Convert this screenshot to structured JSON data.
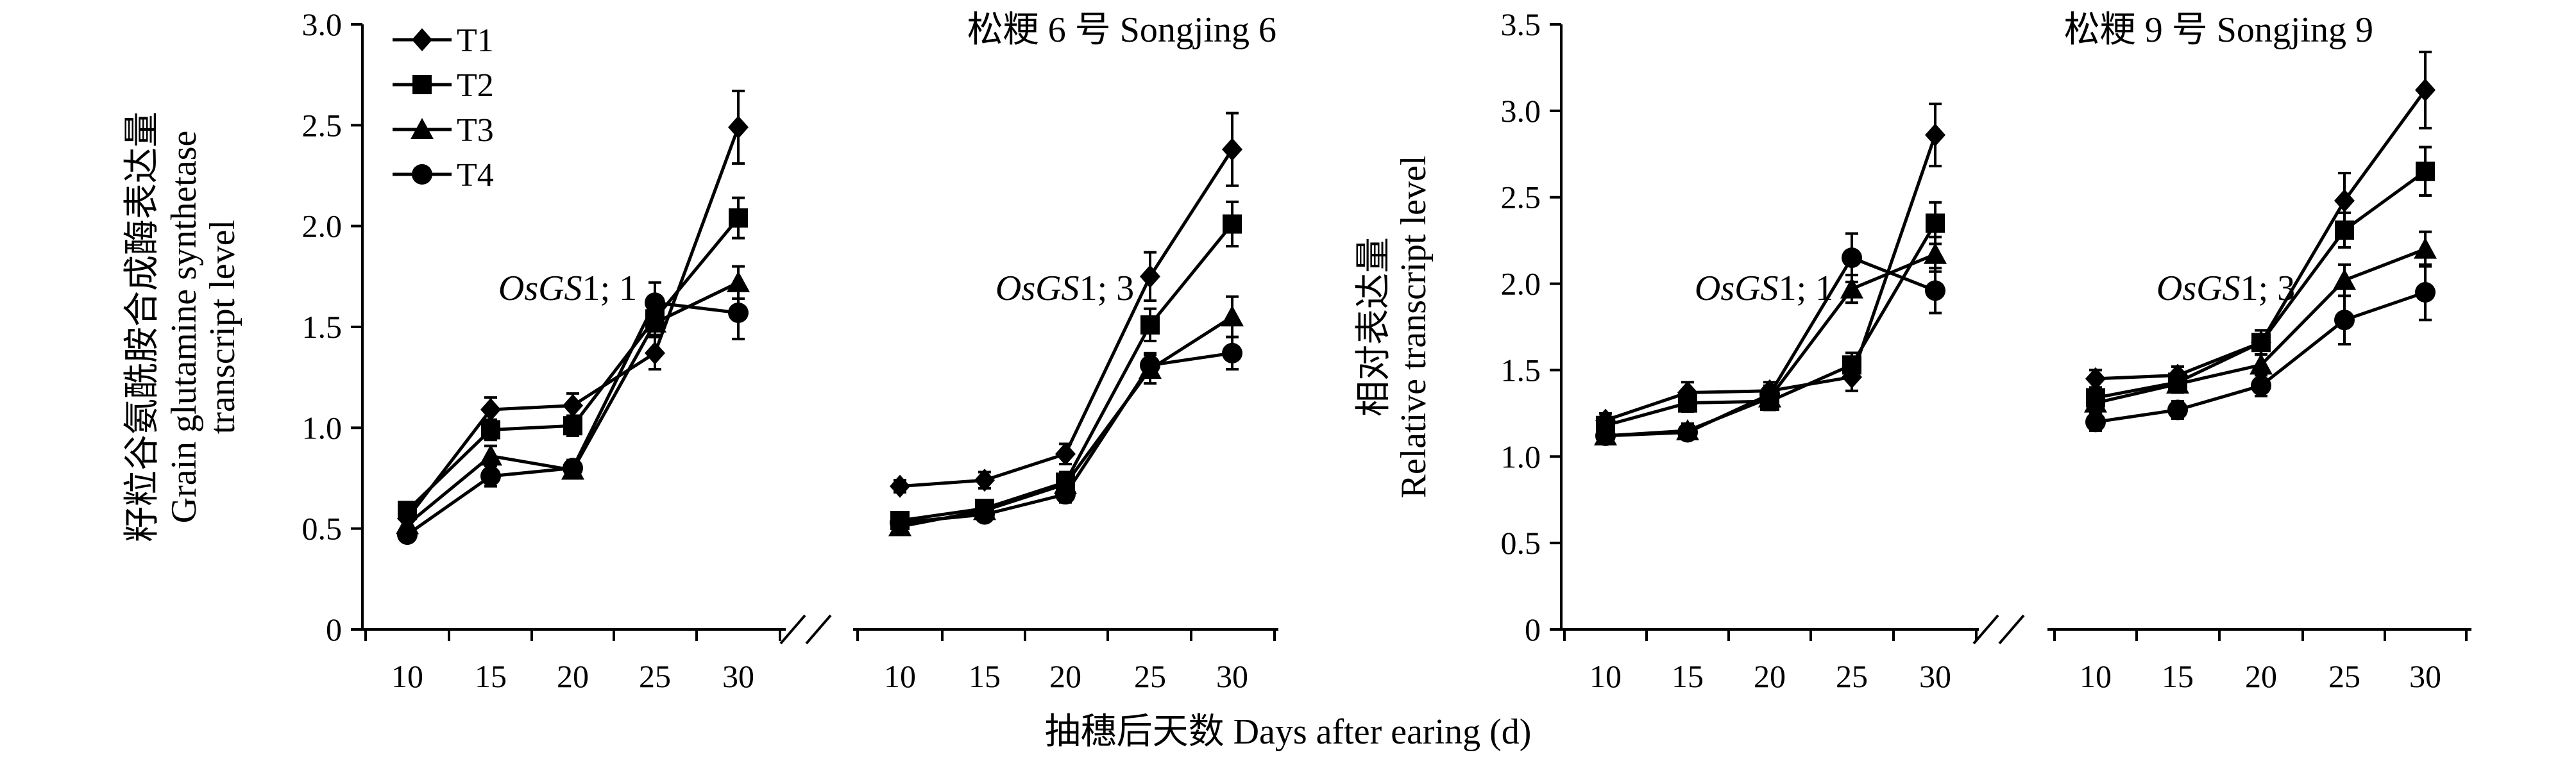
{
  "chart_data": [
    {
      "type": "line",
      "title": "松粳 6 号 Songjing 6",
      "ylabel_lines": [
        "籽粒谷氨酰胺合成酶表达量",
        "Grain glutamine synthetase",
        "transcript level"
      ],
      "ylim": [
        0,
        3.0
      ],
      "yticks": [
        "0",
        "0.5",
        "1.0",
        "1.5",
        "2.0",
        "2.5",
        "3.0"
      ],
      "legend": [
        "T1",
        "T2",
        "T3",
        "T4"
      ],
      "markers": [
        "diamond",
        "square",
        "triangle",
        "circle"
      ],
      "groups": [
        {
          "gene_italic": "OsGS",
          "gene_rest": "1; 1",
          "categories": [
            "10",
            "15",
            "20",
            "25",
            "30"
          ],
          "series": [
            {
              "name": "T1",
              "values": [
                0.55,
                1.09,
                1.11,
                1.37,
                2.49
              ],
              "errors": [
                0.04,
                0.06,
                0.06,
                0.08,
                0.18
              ]
            },
            {
              "name": "T2",
              "values": [
                0.59,
                0.99,
                1.01,
                1.54,
                2.04
              ],
              "errors": [
                0.03,
                0.05,
                0.05,
                0.08,
                0.1
              ]
            },
            {
              "name": "T3",
              "values": [
                0.52,
                0.86,
                0.79,
                1.52,
                1.72
              ],
              "errors": [
                0.03,
                0.05,
                0.04,
                0.07,
                0.08
              ]
            },
            {
              "name": "T4",
              "values": [
                0.47,
                0.76,
                0.8,
                1.62,
                1.57
              ],
              "errors": [
                0.03,
                0.05,
                0.04,
                0.1,
                0.13
              ]
            }
          ]
        },
        {
          "gene_italic": "OsGS",
          "gene_rest": "1; 3",
          "categories": [
            "10",
            "15",
            "20",
            "25",
            "30"
          ],
          "series": [
            {
              "name": "T1",
              "values": [
                0.71,
                0.74,
                0.87,
                1.75,
                2.38
              ],
              "errors": [
                0.03,
                0.04,
                0.05,
                0.12,
                0.18
              ]
            },
            {
              "name": "T2",
              "values": [
                0.54,
                0.6,
                0.73,
                1.51,
                2.01
              ],
              "errors": [
                0.03,
                0.04,
                0.05,
                0.08,
                0.11
              ]
            },
            {
              "name": "T3",
              "values": [
                0.51,
                0.59,
                0.72,
                1.29,
                1.55
              ],
              "errors": [
                0.03,
                0.03,
                0.04,
                0.07,
                0.1
              ]
            },
            {
              "name": "T4",
              "values": [
                0.53,
                0.57,
                0.67,
                1.31,
                1.37
              ],
              "errors": [
                0.03,
                0.03,
                0.04,
                0.06,
                0.08
              ]
            }
          ]
        }
      ]
    },
    {
      "type": "line",
      "title": "松粳 9 号 Songjing 9",
      "ylabel_lines": [
        "相对表达量",
        "Relative transcript level"
      ],
      "ylim": [
        0,
        3.5
      ],
      "yticks": [
        "0",
        "0.5",
        "1.0",
        "1.5",
        "2.0",
        "2.5",
        "3.0",
        "3.5"
      ],
      "legend": [
        "T1",
        "T2",
        "T3",
        "T4"
      ],
      "markers": [
        "diamond",
        "square",
        "triangle",
        "circle"
      ],
      "groups": [
        {
          "gene_italic": "OsGS",
          "gene_rest": "1; 1",
          "categories": [
            "10",
            "15",
            "20",
            "25",
            "30"
          ],
          "series": [
            {
              "name": "T1",
              "values": [
                1.21,
                1.37,
                1.38,
                1.46,
                2.86
              ],
              "errors": [
                0.04,
                0.06,
                0.05,
                0.08,
                0.18
              ]
            },
            {
              "name": "T2",
              "values": [
                1.18,
                1.31,
                1.32,
                1.53,
                2.35
              ],
              "errors": [
                0.04,
                0.05,
                0.05,
                0.07,
                0.12
              ]
            },
            {
              "name": "T3",
              "values": [
                1.12,
                1.15,
                1.34,
                1.97,
                2.17
              ],
              "errors": [
                0.04,
                0.04,
                0.05,
                0.08,
                0.1
              ]
            },
            {
              "name": "T4",
              "values": [
                1.12,
                1.14,
                1.36,
                2.15,
                1.96
              ],
              "errors": [
                0.04,
                0.04,
                0.05,
                0.14,
                0.13
              ]
            }
          ]
        },
        {
          "gene_italic": "OsGS",
          "gene_rest": "1; 3",
          "categories": [
            "10",
            "15",
            "20",
            "25",
            "30"
          ],
          "series": [
            {
              "name": "T1",
              "values": [
                1.45,
                1.47,
                1.66,
                2.48,
                3.12
              ],
              "errors": [
                0.05,
                0.05,
                0.07,
                0.16,
                0.22
              ]
            },
            {
              "name": "T2",
              "values": [
                1.34,
                1.43,
                1.66,
                2.31,
                2.65
              ],
              "errors": [
                0.05,
                0.05,
                0.07,
                0.1,
                0.14
              ]
            },
            {
              "name": "T3",
              "values": [
                1.31,
                1.42,
                1.53,
                2.02,
                2.2
              ],
              "errors": [
                0.05,
                0.05,
                0.06,
                0.09,
                0.1
              ]
            },
            {
              "name": "T4",
              "values": [
                1.2,
                1.27,
                1.41,
                1.79,
                1.95
              ],
              "errors": [
                0.05,
                0.05,
                0.06,
                0.14,
                0.16
              ]
            }
          ]
        }
      ]
    }
  ],
  "xlabel": "抽穗后天数 Days after earing (d)"
}
